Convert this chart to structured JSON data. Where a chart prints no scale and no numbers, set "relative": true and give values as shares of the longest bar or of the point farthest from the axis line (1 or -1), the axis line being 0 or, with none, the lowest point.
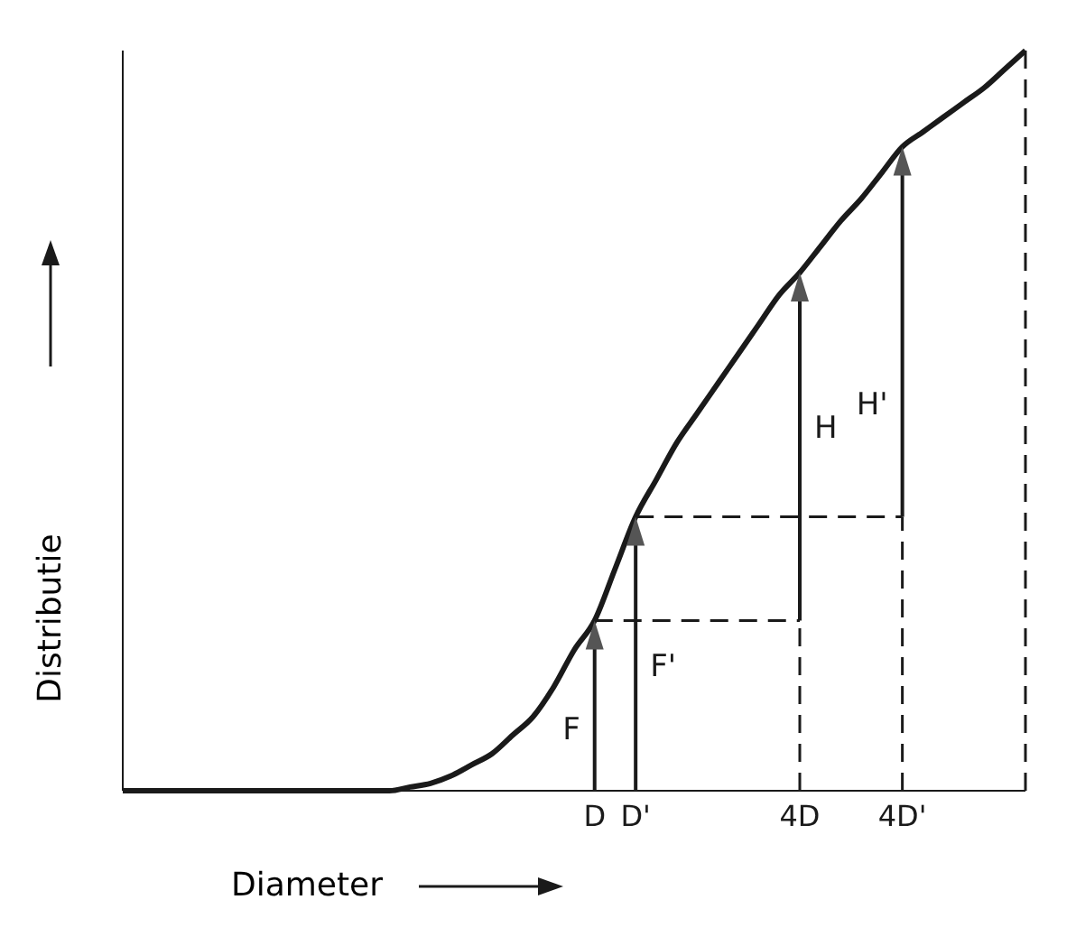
{
  "chart_data": {
    "type": "line",
    "relative": true,
    "xlabel": "Diameter",
    "ylabel": "Distributie",
    "marker": "none",
    "categories": [
      null,
      null,
      null,
      null,
      null,
      null,
      null,
      null,
      null,
      null,
      null,
      null,
      null,
      null,
      null,
      null,
      null,
      null,
      null,
      null,
      null,
      null,
      null,
      "D",
      null,
      "D'",
      null,
      null,
      null,
      null,
      null,
      null,
      null,
      "4D",
      null,
      null,
      null,
      null,
      "4D'",
      null,
      null,
      null,
      null,
      null,
      null
    ],
    "series": [
      {
        "color": "#1a1a1a",
        "values": [
          0,
          0,
          0,
          0,
          0,
          0,
          0,
          0,
          0,
          0,
          0,
          0,
          0,
          0,
          0.005,
          0.01,
          0.02,
          0.035,
          0.05,
          0.075,
          0.1,
          0.14,
          0.19,
          0.23,
          0.3,
          0.37,
          0.42,
          0.47,
          0.51,
          0.55,
          0.59,
          0.63,
          0.67,
          0.7,
          0.735,
          0.77,
          0.8,
          0.835,
          0.87,
          0.89,
          0.91,
          0.93,
          0.95,
          0.975,
          1
        ]
      },
      {
        "color": "#1a1a1a",
        "line_style": "dashed",
        "values": [
          null,
          null,
          null,
          null,
          null,
          null,
          null,
          null,
          null,
          null,
          null,
          null,
          null,
          null,
          null,
          null,
          null,
          null,
          null,
          null,
          null,
          null,
          null,
          0.23,
          0.23,
          0.23,
          0.23,
          0.23,
          0.23,
          0.23,
          0.23,
          0.23,
          0.23,
          0.23,
          null,
          null,
          null,
          null,
          null,
          null,
          null,
          null,
          null,
          null,
          null
        ]
      },
      {
        "color": "#1a1a1a",
        "line_style": "dashed",
        "values": [
          null,
          null,
          null,
          null,
          null,
          null,
          null,
          null,
          null,
          null,
          null,
          null,
          null,
          null,
          null,
          null,
          null,
          null,
          null,
          null,
          null,
          null,
          null,
          null,
          null,
          0.37,
          0.37,
          0.37,
          0.37,
          0.37,
          0.37,
          0.37,
          0.37,
          0.37,
          0.37,
          0.37,
          0.37,
          0.37,
          0.37,
          null,
          null,
          null,
          null,
          null,
          null
        ]
      }
    ],
    "annotations": [
      "F",
      "F'",
      "H",
      "H'"
    ]
  }
}
